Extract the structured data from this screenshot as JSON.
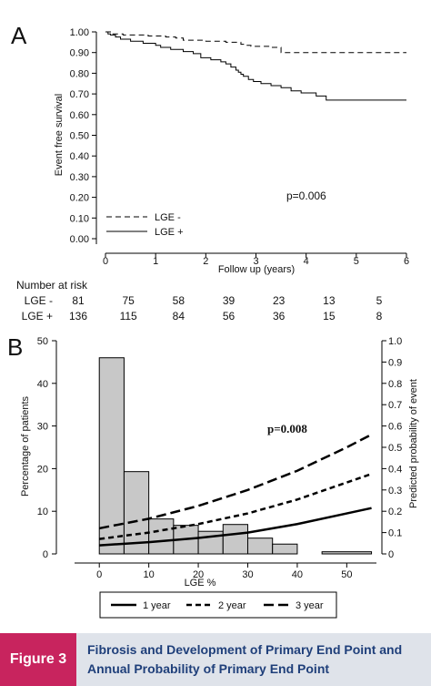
{
  "chart_data": [
    {
      "type": "line",
      "panel_label": "A",
      "xlabel": "Follow up (years)",
      "ylabel": "Event free survival",
      "xlim": [
        0,
        6
      ],
      "ylim": [
        0,
        1
      ],
      "x_ticks": [
        "0",
        "1",
        "2",
        "3",
        "4",
        "5",
        "6"
      ],
      "y_ticks": [
        "0.00",
        "0.10",
        "0.20",
        "0.30",
        "0.40",
        "0.50",
        "0.60",
        "0.70",
        "0.80",
        "0.90",
        "1.00"
      ],
      "annotation": "p=0.006",
      "legend_position": "lower-left",
      "series": [
        {
          "name": "LGE -",
          "style": "dashed",
          "x": [
            0,
            0.1,
            0.35,
            0.85,
            1.2,
            1.4,
            1.55,
            2.0,
            2.4,
            2.7,
            2.8,
            2.9,
            3.3,
            3.5,
            6.0
          ],
          "y": [
            1.0,
            0.99,
            0.985,
            0.98,
            0.975,
            0.97,
            0.96,
            0.955,
            0.95,
            0.94,
            0.935,
            0.93,
            0.925,
            0.9,
            0.9
          ]
        },
        {
          "name": "LGE +",
          "style": "solid",
          "x": [
            0,
            0.05,
            0.1,
            0.2,
            0.3,
            0.5,
            0.75,
            1.0,
            1.1,
            1.3,
            1.55,
            1.75,
            1.9,
            2.1,
            2.3,
            2.4,
            2.5,
            2.6,
            2.65,
            2.7,
            2.75,
            2.85,
            2.95,
            3.1,
            3.3,
            3.5,
            3.7,
            3.9,
            4.2,
            4.4,
            6.0
          ],
          "y": [
            1.0,
            0.99,
            0.985,
            0.975,
            0.965,
            0.955,
            0.945,
            0.935,
            0.925,
            0.915,
            0.905,
            0.895,
            0.875,
            0.865,
            0.855,
            0.845,
            0.83,
            0.815,
            0.805,
            0.795,
            0.785,
            0.77,
            0.76,
            0.75,
            0.74,
            0.73,
            0.715,
            0.705,
            0.69,
            0.67,
            0.67
          ]
        }
      ],
      "risk_table": {
        "title": "Number at risk",
        "rows": [
          {
            "label": "LGE -",
            "values": [
              "81",
              "75",
              "58",
              "39",
              "23",
              "13",
              "5"
            ]
          },
          {
            "label": "LGE +",
            "values": [
              "136",
              "115",
              "84",
              "56",
              "36",
              "15",
              "8"
            ]
          }
        ]
      }
    },
    {
      "type": "bar",
      "panel_label": "B",
      "xlabel": "LGE %",
      "ylabel": "Percentage of patients",
      "ylabel_right": "Predicted probability of event",
      "xlim": [
        -5,
        56
      ],
      "ylim": [
        0,
        50
      ],
      "ylim_right": [
        0,
        1
      ],
      "x_ticks": [
        "0",
        "10",
        "20",
        "30",
        "40",
        "50"
      ],
      "y_ticks": [
        "0",
        "10",
        "20",
        "30",
        "40",
        "50"
      ],
      "y_ticks_right": [
        "0",
        "0.1",
        "0.2",
        "0.3",
        "0.4",
        "0.5",
        "0.6",
        "0.7",
        "0.8",
        "0.9",
        "1.0"
      ],
      "annotation": "p=0.008",
      "legend_position": "bottom",
      "histogram": [
        {
          "x0": 0,
          "x1": 5,
          "value": 46
        },
        {
          "x0": 5,
          "x1": 10,
          "value": 19.3
        },
        {
          "x0": 10,
          "x1": 15,
          "value": 8.2
        },
        {
          "x0": 15,
          "x1": 20,
          "value": 6.7
        },
        {
          "x0": 20,
          "x1": 25,
          "value": 5.3
        },
        {
          "x0": 25,
          "x1": 30,
          "value": 6.9
        },
        {
          "x0": 30,
          "x1": 35,
          "value": 3.7
        },
        {
          "x0": 35,
          "x1": 40,
          "value": 2.3
        },
        {
          "x0": 45,
          "x1": 55,
          "value": 0.5
        }
      ],
      "curves": [
        {
          "name": "1 year",
          "style": "solid",
          "x": [
            0,
            10,
            20,
            30,
            40,
            50,
            55
          ],
          "y": [
            0.04,
            0.055,
            0.075,
            0.1,
            0.14,
            0.19,
            0.215
          ]
        },
        {
          "name": "2 year",
          "style": "dashed",
          "x": [
            0,
            10,
            20,
            30,
            40,
            50,
            55
          ],
          "y": [
            0.07,
            0.1,
            0.14,
            0.19,
            0.255,
            0.335,
            0.375
          ]
        },
        {
          "name": "3 year",
          "style": "dashed-long",
          "x": [
            0,
            10,
            20,
            30,
            40,
            50,
            55
          ],
          "y": [
            0.12,
            0.165,
            0.225,
            0.3,
            0.39,
            0.5,
            0.56
          ]
        }
      ]
    }
  ],
  "footer": {
    "figure_label": "Figure 3",
    "caption": "Fibrosis and Development of Primary End Point and Annual Probability of Primary End Point"
  },
  "colors": {
    "figure_label_bg": "#c8245e",
    "caption_text": "#1f3f7a",
    "footer_bg": "#dfe3ea",
    "bar_fill": "#c8c8c8"
  }
}
